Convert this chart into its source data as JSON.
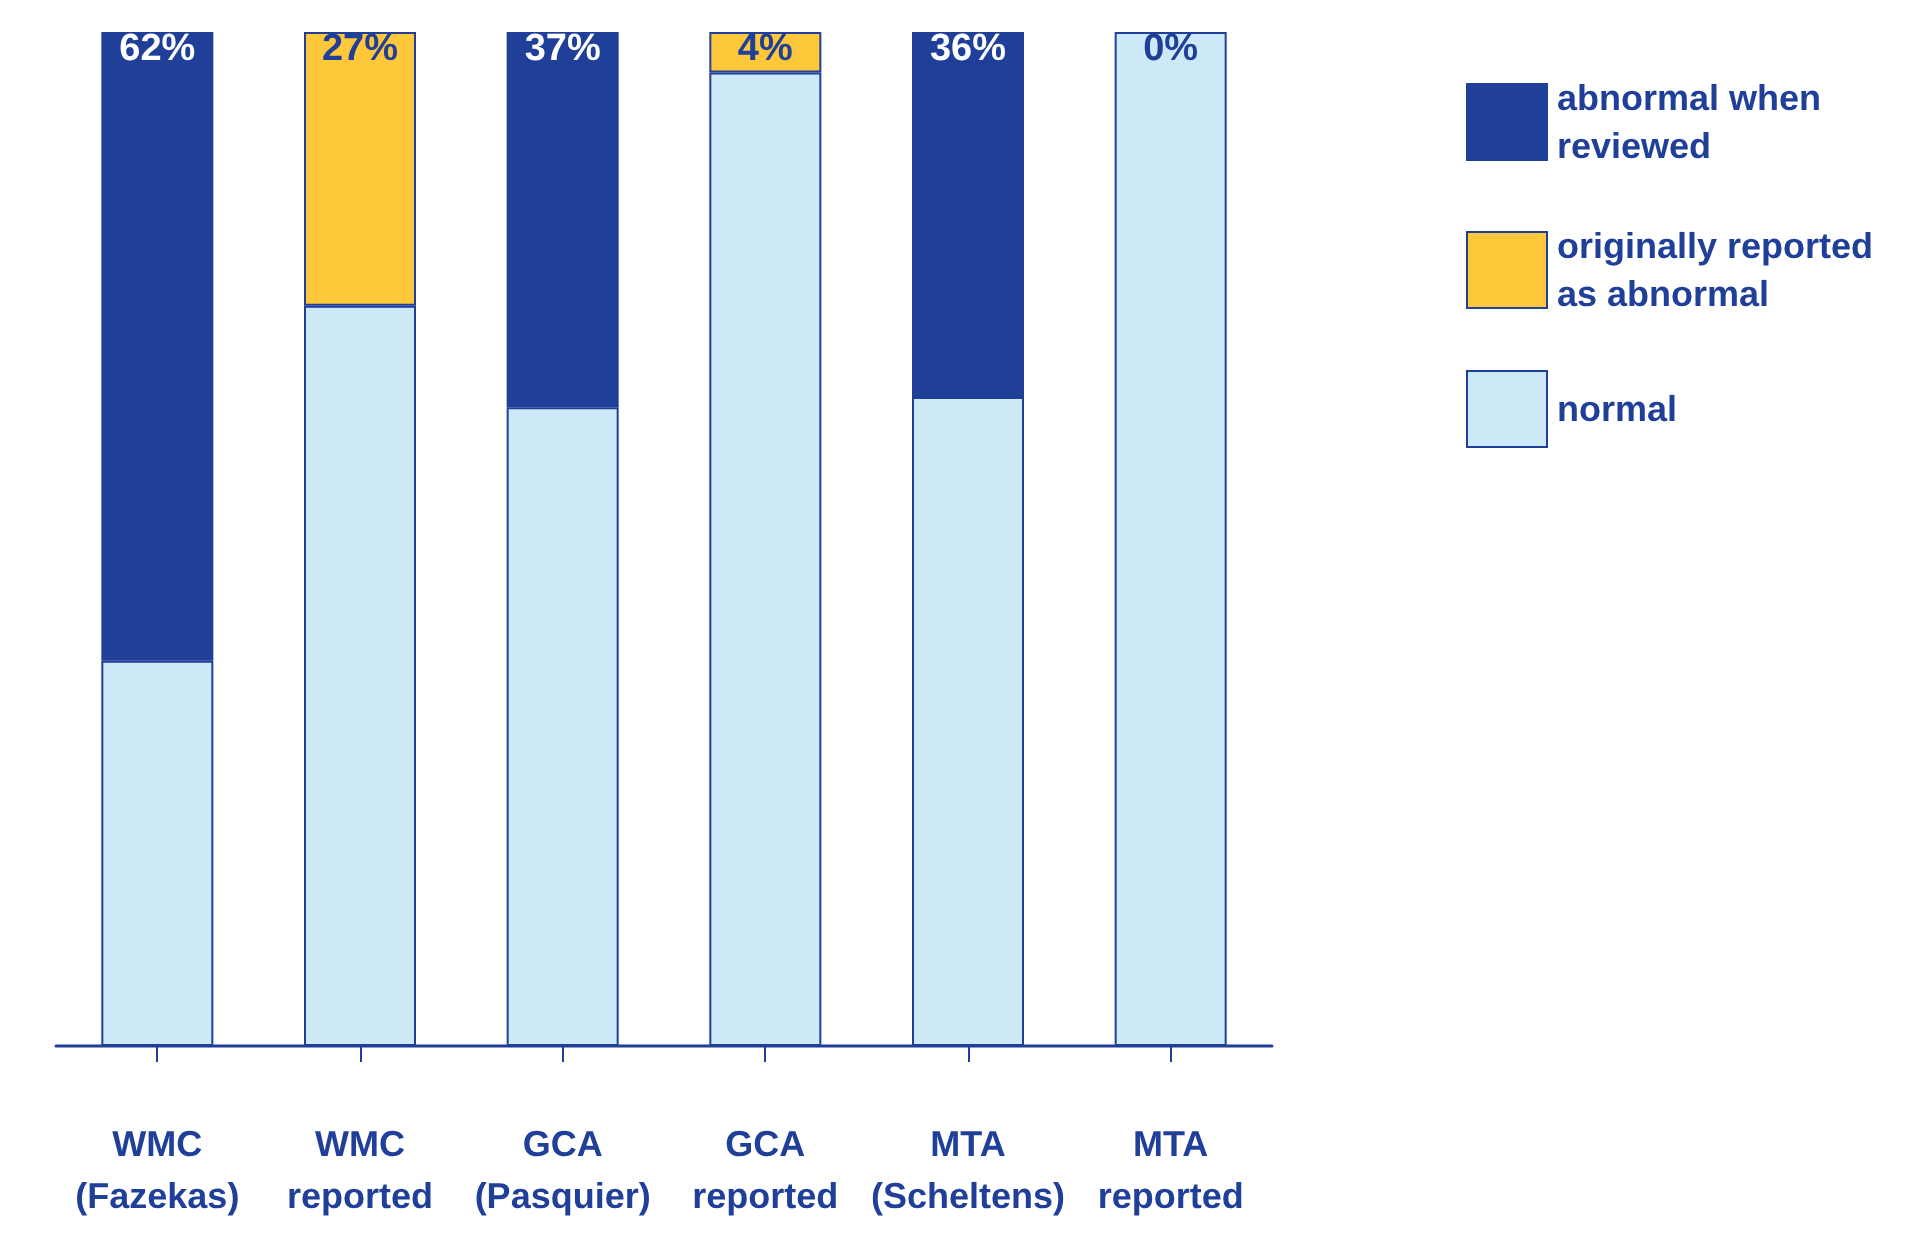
{
  "chart_data": {
    "type": "bar",
    "stacked": true,
    "categories": [
      "WMC\n(Fazekas)",
      "WMC\nreported",
      "GCA\n(Pasquier)",
      "GCA\nreported",
      "MTA\n(Scheltens)",
      "MTA\nreported"
    ],
    "ylim": [
      0,
      100
    ],
    "tick_labels": "x",
    "legend": "top right",
    "series": [
      {
        "name": "normal",
        "color": "#cde9f8",
        "values": [
          38,
          73,
          63,
          96,
          64,
          100
        ]
      },
      {
        "name": "originally reported as abnormal",
        "color": "#ffc83a",
        "values": [
          null,
          27,
          null,
          4,
          null,
          0
        ],
        "value_labels": [
          null,
          "27%",
          null,
          "4%",
          null,
          "0%"
        ]
      },
      {
        "name": "abnormal when reviewed",
        "color": "#1f3f99",
        "values": [
          62,
          null,
          37,
          null,
          36,
          null
        ],
        "value_labels": [
          "62%",
          null,
          "37%",
          null,
          "36%",
          null
        ]
      }
    ]
  }
}
